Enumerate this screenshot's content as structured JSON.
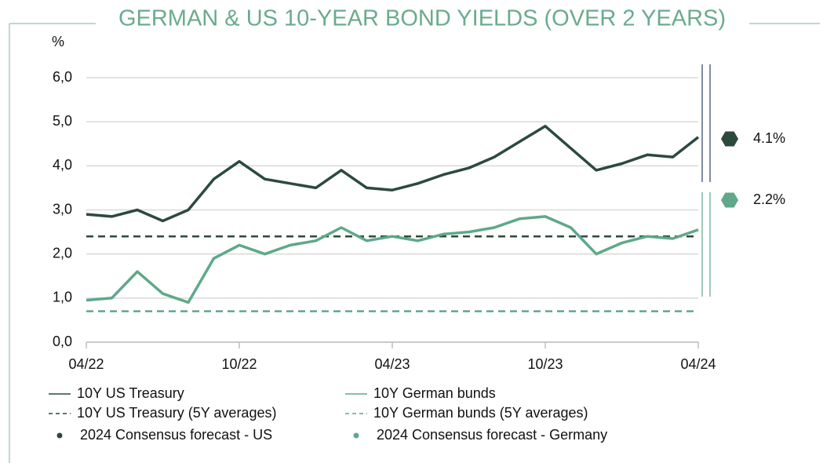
{
  "chart_data": {
    "type": "line",
    "title": "GERMAN & US 10-YEAR BOND YIELDS (OVER 2 YEARS)",
    "y_label": "%",
    "categories": [
      "04/22",
      null,
      null,
      null,
      null,
      null,
      "10/22",
      null,
      null,
      null,
      null,
      null,
      "04/23",
      null,
      null,
      null,
      null,
      null,
      "10/23",
      null,
      null,
      null,
      null,
      null,
      "04/24"
    ],
    "series": [
      {
        "name": "10Y US Treasury",
        "color": "#2c4a3c",
        "values": [
          2.9,
          2.85,
          3.0,
          2.75,
          3.0,
          3.7,
          4.1,
          3.7,
          3.6,
          3.5,
          3.9,
          3.5,
          3.45,
          3.6,
          3.8,
          3.95,
          4.2,
          4.55,
          4.9,
          4.4,
          3.9,
          4.05,
          4.25,
          4.2,
          4.65
        ]
      },
      {
        "name": "10Y German bunds",
        "color": "#5fa88a",
        "values": [
          0.95,
          1.0,
          1.6,
          1.1,
          0.9,
          1.9,
          2.2,
          2.0,
          2.2,
          2.3,
          2.6,
          2.3,
          2.4,
          2.3,
          2.45,
          2.5,
          2.6,
          2.8,
          2.85,
          2.6,
          2.0,
          2.25,
          2.4,
          2.35,
          2.55
        ]
      }
    ],
    "reference_lines": [
      {
        "name": "10Y US Treasury (5Y averages)",
        "color": "#2c4a3c",
        "value": 2.4
      },
      {
        "name": "10Y German bunds  (5Y averages)",
        "color": "#5fa88a",
        "value": 0.7
      }
    ],
    "forecasts": [
      {
        "name": "2024 Consensus forecast - US",
        "color": "#2c4a3c",
        "value": 4.1,
        "value_label": "4.1%"
      },
      {
        "name": "2024 Consensus forecast - Germany",
        "color": "#5fa88a",
        "value": 2.2,
        "value_label": "2.2%"
      }
    ],
    "ylim": [
      0,
      6
    ],
    "yticks": [
      {
        "value": 0,
        "label": "0,0"
      },
      {
        "value": 1,
        "label": "1,0"
      },
      {
        "value": 2,
        "label": "2,0"
      },
      {
        "value": 3,
        "label": "3,0"
      },
      {
        "value": 4,
        "label": "4,0"
      },
      {
        "value": 5,
        "label": "5,0"
      },
      {
        "value": 6,
        "label": "6,0"
      }
    ],
    "grid": true
  }
}
